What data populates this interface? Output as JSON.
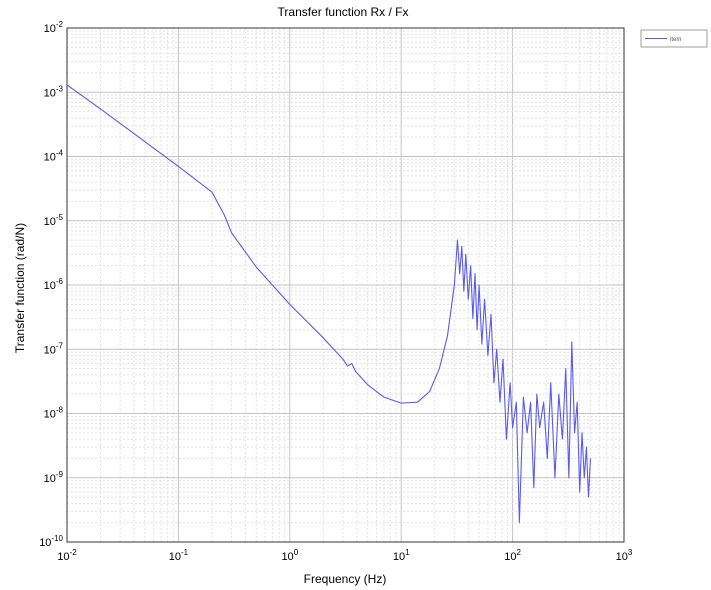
{
  "chart_data": {
    "type": "line",
    "title": "Transfer function Rx / Fx",
    "xlabel": "Frequency (Hz)",
    "ylabel": "Transfer function (rad/N)",
    "xscale": "log",
    "yscale": "log",
    "xlim": [
      0.01,
      1000
    ],
    "ylim": [
      1e-10,
      0.01
    ],
    "x_ticks": [
      {
        "base": "10",
        "exp": "-2"
      },
      {
        "base": "10",
        "exp": "-1"
      },
      {
        "base": "10",
        "exp": "0"
      },
      {
        "base": "10",
        "exp": "1"
      },
      {
        "base": "10",
        "exp": "2"
      },
      {
        "base": "10",
        "exp": "3"
      }
    ],
    "y_ticks": [
      {
        "base": "10",
        "exp": "-10"
      },
      {
        "base": "10",
        "exp": "-9"
      },
      {
        "base": "10",
        "exp": "-8"
      },
      {
        "base": "10",
        "exp": "-7"
      },
      {
        "base": "10",
        "exp": "-6"
      },
      {
        "base": "10",
        "exp": "-5"
      },
      {
        "base": "10",
        "exp": "-4"
      },
      {
        "base": "10",
        "exp": "-3"
      },
      {
        "base": "10",
        "exp": "-2"
      }
    ],
    "grid": true,
    "legend_placement": "outside top-right",
    "series": [
      {
        "name": "item",
        "color": "#5a5aee",
        "x": [
          0.01,
          0.02,
          0.05,
          0.1,
          0.2,
          0.26,
          0.3,
          0.5,
          1,
          2,
          3,
          3.3,
          3.6,
          3.9,
          5,
          7,
          10,
          14,
          18,
          22,
          26,
          30,
          32,
          33.5,
          35,
          36.5,
          38,
          40,
          42,
          44,
          46,
          48,
          50,
          53,
          56,
          60,
          64,
          68,
          72,
          77,
          82,
          88,
          95,
          100,
          108,
          115,
          125,
          135,
          145,
          155,
          165,
          175,
          190,
          205,
          220,
          240,
          260,
          280,
          300,
          320,
          340,
          360,
          380,
          400,
          420,
          440,
          460,
          480,
          500
        ],
        "y": [
          0.0013,
          0.00055,
          0.00017,
          7e-05,
          2.8e-05,
          1.2e-05,
          6.5e-06,
          1.9e-06,
          5e-07,
          1.5e-07,
          7e-08,
          5.5e-08,
          6e-08,
          4.5e-08,
          2.8e-08,
          1.8e-08,
          1.45e-08,
          1.5e-08,
          2.2e-08,
          5e-08,
          1.6e-07,
          1e-06,
          5e-06,
          1.5e-06,
          4e-06,
          8e-07,
          3e-06,
          6e-07,
          2e-06,
          3e-07,
          1.5e-06,
          2e-07,
          1e-06,
          1.2e-07,
          6e-07,
          8e-08,
          3.5e-07,
          3e-08,
          1e-07,
          1.5e-08,
          7e-08,
          4e-09,
          3e-08,
          6e-09,
          1.5e-08,
          2e-10,
          1.8e-08,
          5e-09,
          1.5e-08,
          7e-10,
          2e-08,
          6e-09,
          1.5e-08,
          2e-09,
          3e-08,
          1e-09,
          2e-08,
          4e-09,
          5e-08,
          1e-09,
          1.3e-07,
          5e-09,
          1.5e-08,
          6e-10,
          5e-09,
          1e-09,
          3e-09,
          5e-10,
          2e-09
        ]
      }
    ]
  }
}
